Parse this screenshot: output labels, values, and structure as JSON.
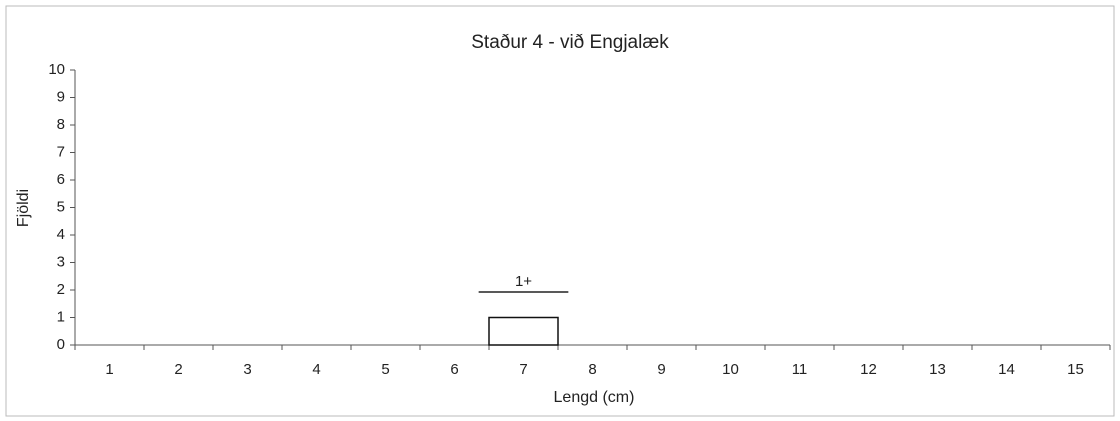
{
  "chart_data": {
    "type": "bar",
    "title": "Staður 4 - við Engjalæk",
    "x_label": "Lengd (cm)",
    "y_label": "Fjöldi",
    "categories": [
      1,
      2,
      3,
      4,
      5,
      6,
      7,
      8,
      9,
      10,
      11,
      12,
      13,
      14,
      15
    ],
    "values": [
      0,
      0,
      0,
      0,
      0,
      0,
      1,
      0,
      0,
      0,
      0,
      0,
      0,
      0,
      0
    ],
    "color": "#ffffff",
    "annotation": "1+",
    "ylim": [
      0,
      10
    ],
    "yticks": [
      0,
      1,
      2,
      3,
      4,
      5,
      6,
      7,
      8,
      9,
      10
    ],
    "grid": false
  }
}
